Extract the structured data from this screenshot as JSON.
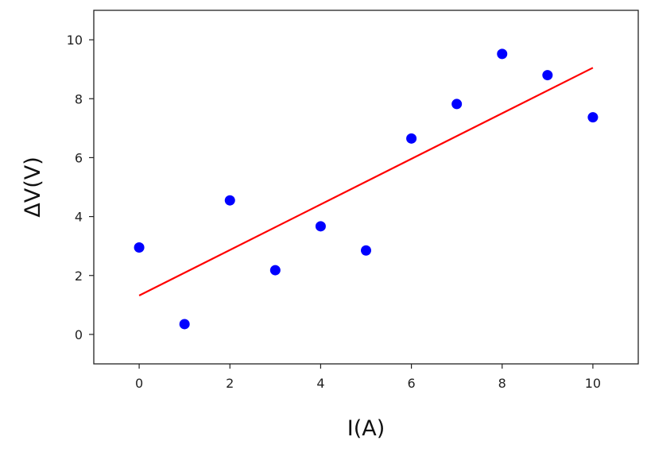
{
  "chart_data": {
    "type": "scatter",
    "title": "",
    "xlabel": "I(A)",
    "ylabel": "ΔV(V)",
    "xlim": [
      -1,
      11
    ],
    "ylim": [
      -1,
      11
    ],
    "xticks": [
      0,
      2,
      4,
      6,
      8,
      10
    ],
    "yticks": [
      0,
      2,
      4,
      6,
      8,
      10
    ],
    "xtick_labels": [
      "0",
      "2",
      "4",
      "6",
      "8",
      "10"
    ],
    "ytick_labels": [
      "0",
      "2",
      "4",
      "6",
      "8",
      "10"
    ],
    "grid": false,
    "series": [
      {
        "kind": "scatter",
        "color": "#0000ff",
        "x": [
          0,
          1,
          2,
          3,
          4,
          5,
          6,
          7,
          8,
          9,
          10
        ],
        "y": [
          2.95,
          0.35,
          4.55,
          2.18,
          3.67,
          2.85,
          6.65,
          7.82,
          9.52,
          8.8,
          7.37
        ]
      },
      {
        "kind": "line",
        "color": "#ff0000",
        "x": [
          0,
          10
        ],
        "y": [
          1.32,
          9.05
        ]
      }
    ]
  }
}
